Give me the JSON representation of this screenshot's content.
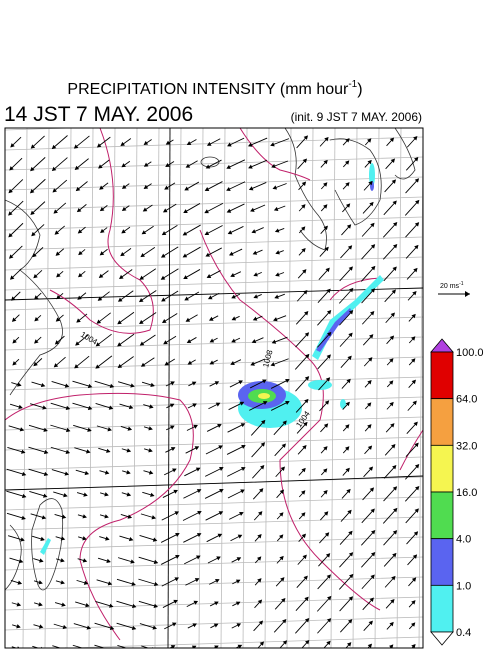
{
  "header": {
    "title": "PRECIPITATION INTENSITY (mm hour",
    "title_sup": "-1",
    "title_end": ")",
    "valid_time": "14 JST 7 MAY. 2006",
    "init_time": "(init. 9 JST 7 MAY. 2006)"
  },
  "reference_vector": {
    "label": "20 ms",
    "label_sup": "-1"
  },
  "colorbar": {
    "levels": [
      {
        "value": 100,
        "label": "100.0"
      },
      {
        "value": 64,
        "label": "64.0"
      },
      {
        "value": 32,
        "label": "32.0"
      },
      {
        "value": 16,
        "label": "16.0"
      },
      {
        "value": 4,
        "label": "4.0"
      },
      {
        "value": 1,
        "label": "1.0"
      },
      {
        "value": 0.4,
        "label": "0.4"
      }
    ],
    "colors": [
      "#e00000",
      "#f5a040",
      "#f5f550",
      "#50dc50",
      "#5a64f0",
      "#50f0f0"
    ],
    "over_color": "#b040e0",
    "under_color": "#ffffff"
  },
  "contour_labels": [
    "1004",
    "1008",
    "1004"
  ]
}
